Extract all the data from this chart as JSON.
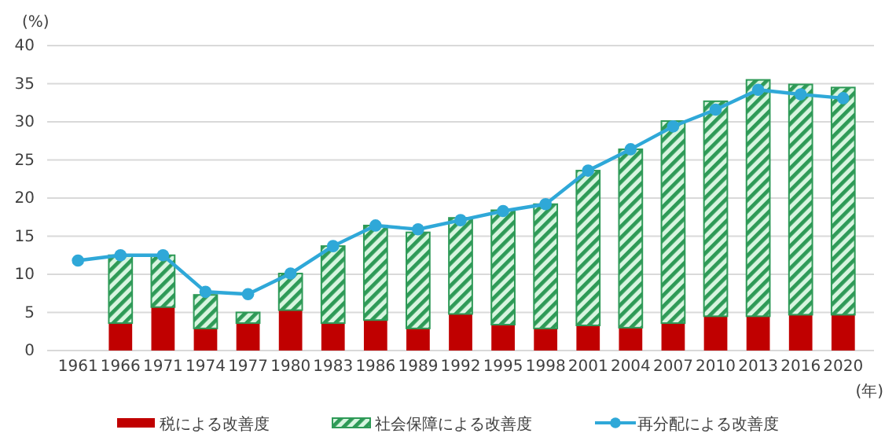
{
  "chart_data": {
    "type": "bar",
    "stacked": true,
    "ylabel": "(%)",
    "xlabel": "(年)",
    "categories": [
      "1961",
      "1966",
      "1971",
      "1974",
      "1977",
      "1980",
      "1983",
      "1986",
      "1989",
      "1992",
      "1995",
      "1998",
      "2001",
      "2004",
      "2007",
      "2010",
      "2013",
      "2016",
      "2020"
    ],
    "series": [
      {
        "name": "税による改善度",
        "color": "#c00000",
        "values": [
          null,
          3.6,
          5.7,
          2.9,
          3.6,
          5.3,
          3.6,
          4.0,
          2.9,
          4.8,
          3.4,
          2.9,
          3.3,
          3.0,
          3.6,
          4.5,
          4.5,
          4.7,
          4.7
        ]
      },
      {
        "name": "社会保障による改善度",
        "color": "#2e9a57",
        "values": [
          null,
          8.9,
          6.8,
          4.4,
          1.4,
          4.8,
          10.1,
          12.4,
          12.6,
          12.6,
          15.0,
          16.3,
          20.3,
          23.4,
          26.5,
          28.2,
          31.0,
          30.2,
          29.8
        ]
      },
      {
        "name": "再分配による改善度",
        "type": "line",
        "color": "#2fa8d8",
        "marker": "circle",
        "values": [
          11.8,
          12.5,
          12.5,
          7.7,
          7.4,
          10.1,
          13.7,
          16.4,
          15.9,
          17.1,
          18.3,
          19.2,
          23.6,
          26.4,
          29.4,
          31.6,
          34.2,
          33.6,
          33.1
        ]
      }
    ],
    "ylim": [
      0,
      40
    ],
    "yticks": [
      0,
      5,
      10,
      15,
      20,
      25,
      30,
      35,
      40
    ],
    "grid": "y",
    "legend": "bottom"
  }
}
